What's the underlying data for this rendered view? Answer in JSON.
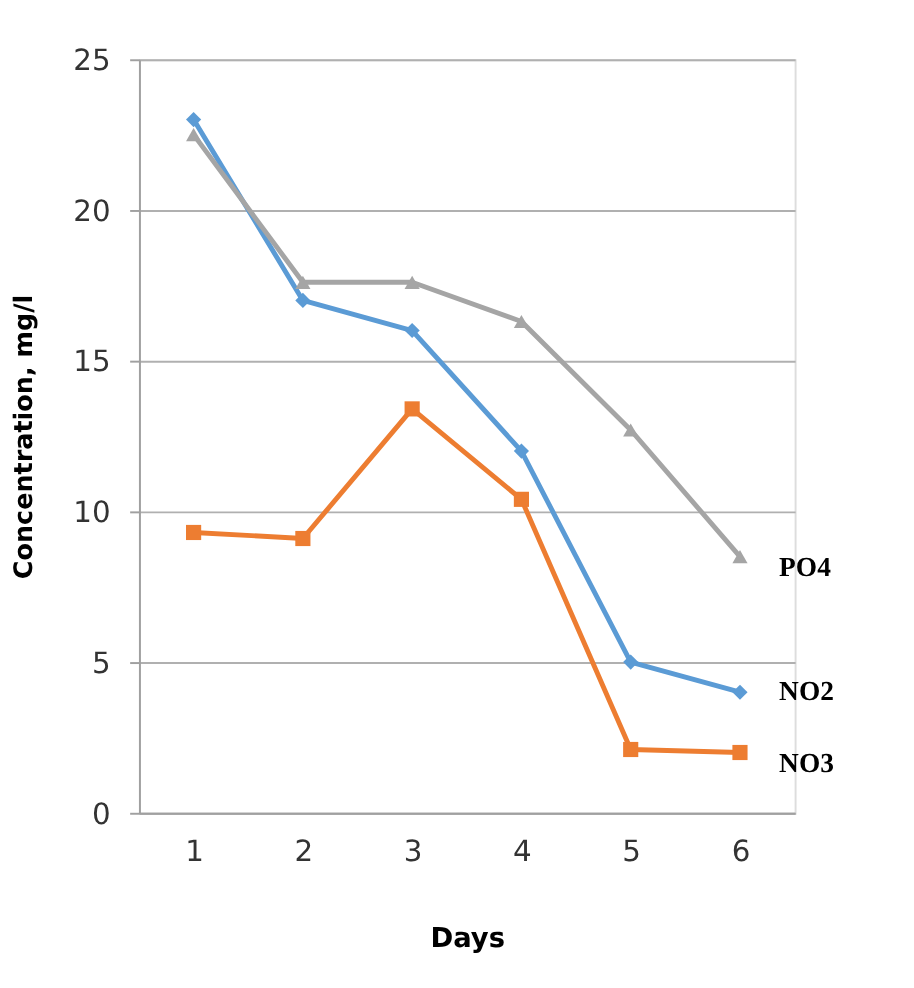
{
  "chart_data": {
    "type": "line",
    "xlabel": "Days",
    "ylabel": "Concentration, mg/l",
    "categories": [
      "1",
      "2",
      "3",
      "4",
      "5",
      "6"
    ],
    "series": [
      {
        "name": "NO2",
        "color": "#5b9bd5",
        "marker": "diamond",
        "values": [
          23,
          17,
          16,
          12,
          5,
          4
        ]
      },
      {
        "name": "NO3",
        "color": "#ed7d31",
        "marker": "square",
        "values": [
          9.3,
          9.1,
          13.4,
          10.4,
          2.1,
          2.0
        ]
      },
      {
        "name": "PO4",
        "color": "#a5a5a5",
        "marker": "triangle",
        "values": [
          22.5,
          17.6,
          17.6,
          16.3,
          12.7,
          8.5
        ]
      }
    ],
    "ylim": [
      0,
      25
    ],
    "yticks": [
      0,
      5,
      10,
      15,
      20,
      25
    ],
    "grid": "y",
    "legend": false,
    "line_style": "solid"
  }
}
